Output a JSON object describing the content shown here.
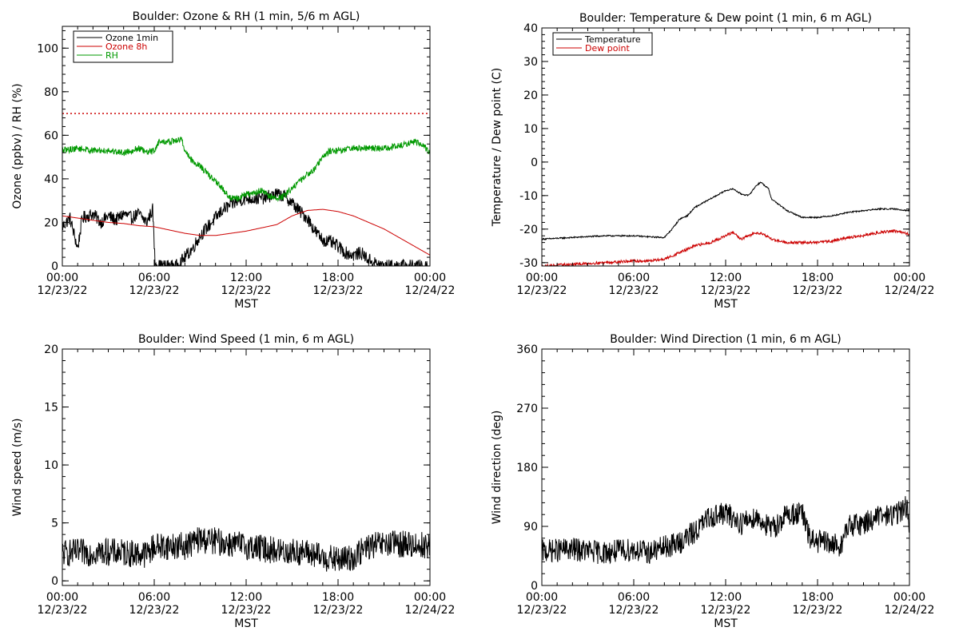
{
  "chart_data": [
    {
      "type": "line",
      "title": "Boulder: Ozone & RH (1 min, 5/6 m AGL)",
      "xlabel": "MST",
      "ylabel": "Ozone (ppbv) / RH (%)",
      "xlim": [
        0,
        24
      ],
      "ylim": [
        0,
        110
      ],
      "xticks": [
        0,
        6,
        12,
        18,
        24
      ],
      "xtick_labels": [
        {
          "time": "00:00",
          "date": "12/23/22"
        },
        {
          "time": "06:00",
          "date": "12/23/22"
        },
        {
          "time": "12:00",
          "date": "12/23/22"
        },
        {
          "time": "18:00",
          "date": "12/23/22"
        },
        {
          "time": "00:00",
          "date": "12/24/22"
        }
      ],
      "yticks": [
        0,
        20,
        40,
        60,
        80,
        100
      ],
      "ytick_labels": [
        "0",
        "20",
        "40",
        "60",
        "80",
        "100"
      ],
      "legend": "top-left",
      "reference_line": {
        "y": 70,
        "color": "#cc0000",
        "style": "dotted"
      },
      "series": [
        {
          "name": "Ozone 1min",
          "color": "#000000",
          "noise": 3,
          "points": [
            [
              0,
              18
            ],
            [
              0.5,
              22
            ],
            [
              1,
              8
            ],
            [
              1.3,
              22
            ],
            [
              2,
              24
            ],
            [
              2.5,
              20
            ],
            [
              3,
              23
            ],
            [
              3.5,
              21
            ],
            [
              4,
              24
            ],
            [
              4.5,
              22
            ],
            [
              5,
              24
            ],
            [
              5.5,
              20
            ],
            [
              5.9,
              26
            ],
            [
              6.05,
              2
            ],
            [
              6.3,
              0
            ],
            [
              7,
              0
            ],
            [
              7.5,
              0
            ],
            [
              8,
              4
            ],
            [
              8.5,
              8
            ],
            [
              9,
              14
            ],
            [
              9.5,
              18
            ],
            [
              10,
              22
            ],
            [
              10.5,
              26
            ],
            [
              11,
              28
            ],
            [
              11.5,
              30
            ],
            [
              12,
              31
            ],
            [
              12.5,
              31
            ],
            [
              13,
              31
            ],
            [
              13.5,
              32
            ],
            [
              14,
              33
            ],
            [
              14.5,
              32
            ],
            [
              15,
              29
            ],
            [
              15.5,
              25
            ],
            [
              16,
              22
            ],
            [
              16.5,
              16
            ],
            [
              17,
              12
            ],
            [
              17.5,
              11
            ],
            [
              18,
              9
            ],
            [
              18.5,
              6
            ],
            [
              19,
              5
            ],
            [
              19.5,
              6
            ],
            [
              20,
              3
            ],
            [
              20.5,
              1
            ],
            [
              21,
              0
            ],
            [
              22,
              0
            ],
            [
              23,
              0
            ],
            [
              23.9,
              0
            ]
          ]
        },
        {
          "name": "Ozone 8h",
          "color": "#cc0000",
          "noise": 0,
          "points": [
            [
              0,
              23
            ],
            [
              1,
              22
            ],
            [
              2,
              21
            ],
            [
              3,
              20
            ],
            [
              4,
              19.5
            ],
            [
              5,
              18.5
            ],
            [
              6,
              18
            ],
            [
              7,
              16.5
            ],
            [
              8,
              15
            ],
            [
              9,
              14
            ],
            [
              10,
              14
            ],
            [
              11,
              15
            ],
            [
              12,
              16
            ],
            [
              13,
              17.5
            ],
            [
              14,
              19
            ],
            [
              14.5,
              21
            ],
            [
              15,
              23
            ],
            [
              16,
              25.5
            ],
            [
              17,
              26
            ],
            [
              18,
              25
            ],
            [
              19,
              23
            ],
            [
              20,
              20
            ],
            [
              21,
              17
            ],
            [
              22,
              13
            ],
            [
              23,
              9
            ],
            [
              24,
              5
            ]
          ]
        },
        {
          "name": "RH",
          "color": "#009900",
          "noise": 1.5,
          "points": [
            [
              0,
              53
            ],
            [
              1,
              54
            ],
            [
              2,
              53
            ],
            [
              3,
              53
            ],
            [
              4,
              52
            ],
            [
              5,
              54
            ],
            [
              5.5,
              52
            ],
            [
              6,
              53
            ],
            [
              6.3,
              57
            ],
            [
              7,
              57
            ],
            [
              7.8,
              58
            ],
            [
              8,
              53
            ],
            [
              8.5,
              48
            ],
            [
              9,
              46
            ],
            [
              9.5,
              42
            ],
            [
              10,
              39
            ],
            [
              10.5,
              35
            ],
            [
              11,
              31
            ],
            [
              11.5,
              31
            ],
            [
              12,
              33
            ],
            [
              12.5,
              33
            ],
            [
              13,
              35
            ],
            [
              13.5,
              32
            ],
            [
              14,
              31
            ],
            [
              14.5,
              32
            ],
            [
              15,
              36
            ],
            [
              15.5,
              39
            ],
            [
              16,
              42
            ],
            [
              16.5,
              45
            ],
            [
              17,
              50
            ],
            [
              17.5,
              53
            ],
            [
              18,
              53
            ],
            [
              19,
              54
            ],
            [
              20,
              54
            ],
            [
              21,
              54
            ],
            [
              22,
              55
            ],
            [
              23,
              57
            ],
            [
              23.5,
              56
            ],
            [
              24,
              52
            ]
          ]
        }
      ]
    },
    {
      "type": "line",
      "title": "Boulder: Temperature & Dew point (1 min, 6 m AGL)",
      "xlabel": "MST",
      "ylabel": "Temperature / Dew point (C)",
      "xlim": [
        0,
        24
      ],
      "ylim": [
        -31,
        40
      ],
      "xticks": [
        0,
        6,
        12,
        18,
        24
      ],
      "xtick_labels": [
        {
          "time": "00:00",
          "date": "12/23/22"
        },
        {
          "time": "06:00",
          "date": "12/23/22"
        },
        {
          "time": "12:00",
          "date": "12/23/22"
        },
        {
          "time": "18:00",
          "date": "12/23/22"
        },
        {
          "time": "00:00",
          "date": "12/24/22"
        }
      ],
      "yticks": [
        -30,
        -20,
        -10,
        0,
        10,
        20,
        30,
        40
      ],
      "ytick_labels": [
        "-30",
        "-20",
        "-10",
        "0",
        "10",
        "20",
        "30",
        "40"
      ],
      "legend": "top-left",
      "series": [
        {
          "name": "Temperature",
          "color": "#000000",
          "noise": 0.2,
          "points": [
            [
              0,
              -23
            ],
            [
              2,
              -22.5
            ],
            [
              4,
              -22
            ],
            [
              6,
              -22
            ],
            [
              7,
              -22.3
            ],
            [
              8,
              -22.5
            ],
            [
              8.5,
              -20
            ],
            [
              9,
              -17
            ],
            [
              9.5,
              -16
            ],
            [
              10,
              -13.5
            ],
            [
              11,
              -11
            ],
            [
              12,
              -8.5
            ],
            [
              12.5,
              -8
            ],
            [
              13,
              -9.5
            ],
            [
              13.5,
              -10
            ],
            [
              14,
              -7
            ],
            [
              14.3,
              -6
            ],
            [
              14.8,
              -8
            ],
            [
              15,
              -11
            ],
            [
              16,
              -14.5
            ],
            [
              17,
              -16.5
            ],
            [
              18,
              -16.5
            ],
            [
              19,
              -16
            ],
            [
              20,
              -15
            ],
            [
              21,
              -14.5
            ],
            [
              22,
              -14
            ],
            [
              23,
              -14
            ],
            [
              24,
              -14.5
            ]
          ]
        },
        {
          "name": "Dew point",
          "color": "#cc0000",
          "noise": 0.4,
          "points": [
            [
              0,
              -31
            ],
            [
              2,
              -30.5
            ],
            [
              4,
              -30
            ],
            [
              6,
              -29.5
            ],
            [
              7,
              -29.5
            ],
            [
              8,
              -29
            ],
            [
              9,
              -27
            ],
            [
              9.5,
              -26
            ],
            [
              10,
              -25
            ],
            [
              11,
              -24
            ],
            [
              12,
              -22
            ],
            [
              12.5,
              -21
            ],
            [
              13,
              -23
            ],
            [
              14,
              -21
            ],
            [
              14.5,
              -21.5
            ],
            [
              15,
              -23
            ],
            [
              16,
              -24
            ],
            [
              17,
              -24
            ],
            [
              18,
              -24
            ],
            [
              19,
              -23.5
            ],
            [
              20,
              -22.5
            ],
            [
              21,
              -22
            ],
            [
              22,
              -21
            ],
            [
              23,
              -20.5
            ],
            [
              24,
              -21.5
            ]
          ]
        }
      ]
    },
    {
      "type": "line",
      "title": "Boulder: Wind Speed (1 min, 6 m AGL)",
      "xlabel": "MST",
      "ylabel": "Wind speed (m/s)",
      "xlim": [
        0,
        24
      ],
      "ylim": [
        -0.4,
        20
      ],
      "xticks": [
        0,
        6,
        12,
        18,
        24
      ],
      "xtick_labels": [
        {
          "time": "00:00",
          "date": "12/23/22"
        },
        {
          "time": "06:00",
          "date": "12/23/22"
        },
        {
          "time": "12:00",
          "date": "12/23/22"
        },
        {
          "time": "18:00",
          "date": "12/23/22"
        },
        {
          "time": "00:00",
          "date": "12/24/22"
        }
      ],
      "yticks": [
        0,
        5,
        10,
        15,
        20
      ],
      "ytick_labels": [
        "0",
        "5",
        "10",
        "15",
        "20"
      ],
      "series": [
        {
          "name": "",
          "color": "#000000",
          "noise": 1.2,
          "points": [
            [
              0,
              2.4
            ],
            [
              3,
              2.5
            ],
            [
              5.5,
              2.3
            ],
            [
              6,
              3
            ],
            [
              8,
              3
            ],
            [
              9,
              3.6
            ],
            [
              12,
              3
            ],
            [
              14,
              2.6
            ],
            [
              16,
              2.4
            ],
            [
              17,
              2
            ],
            [
              18,
              1.8
            ],
            [
              19,
              2
            ],
            [
              20,
              3
            ],
            [
              22,
              3.2
            ],
            [
              24,
              3
            ]
          ]
        }
      ]
    },
    {
      "type": "line",
      "title": "Boulder: Wind Direction (1 min, 6 m AGL)",
      "xlabel": "MST",
      "ylabel": "Wind direction (deg)",
      "xlim": [
        0,
        24
      ],
      "ylim": [
        0,
        360
      ],
      "xticks": [
        0,
        6,
        12,
        18,
        24
      ],
      "xtick_labels": [
        {
          "time": "00:00",
          "date": "12/23/22"
        },
        {
          "time": "06:00",
          "date": "12/23/22"
        },
        {
          "time": "12:00",
          "date": "12/23/22"
        },
        {
          "time": "18:00",
          "date": "12/23/22"
        },
        {
          "time": "00:00",
          "date": "12/24/22"
        }
      ],
      "yticks": [
        0,
        90,
        180,
        270,
        360
      ],
      "ytick_labels": [
        "0",
        "90",
        "180",
        "270",
        "360"
      ],
      "series": [
        {
          "name": "",
          "color": "#000000",
          "noise": 18,
          "points": [
            [
              0,
              52
            ],
            [
              2,
              55
            ],
            [
              4,
              50
            ],
            [
              6,
              55
            ],
            [
              7,
              50
            ],
            [
              8,
              58
            ],
            [
              9,
              65
            ],
            [
              10,
              82
            ],
            [
              11,
              105
            ],
            [
              12,
              110
            ],
            [
              13,
              95
            ],
            [
              14,
              105
            ],
            [
              15,
              85
            ],
            [
              16,
              108
            ],
            [
              17,
              110
            ],
            [
              17.5,
              70
            ],
            [
              18.5,
              65
            ],
            [
              19.5,
              60
            ],
            [
              20,
              90
            ],
            [
              21,
              95
            ],
            [
              22,
              105
            ],
            [
              23,
              108
            ],
            [
              23.8,
              120
            ],
            [
              24,
              95
            ]
          ]
        }
      ]
    }
  ]
}
